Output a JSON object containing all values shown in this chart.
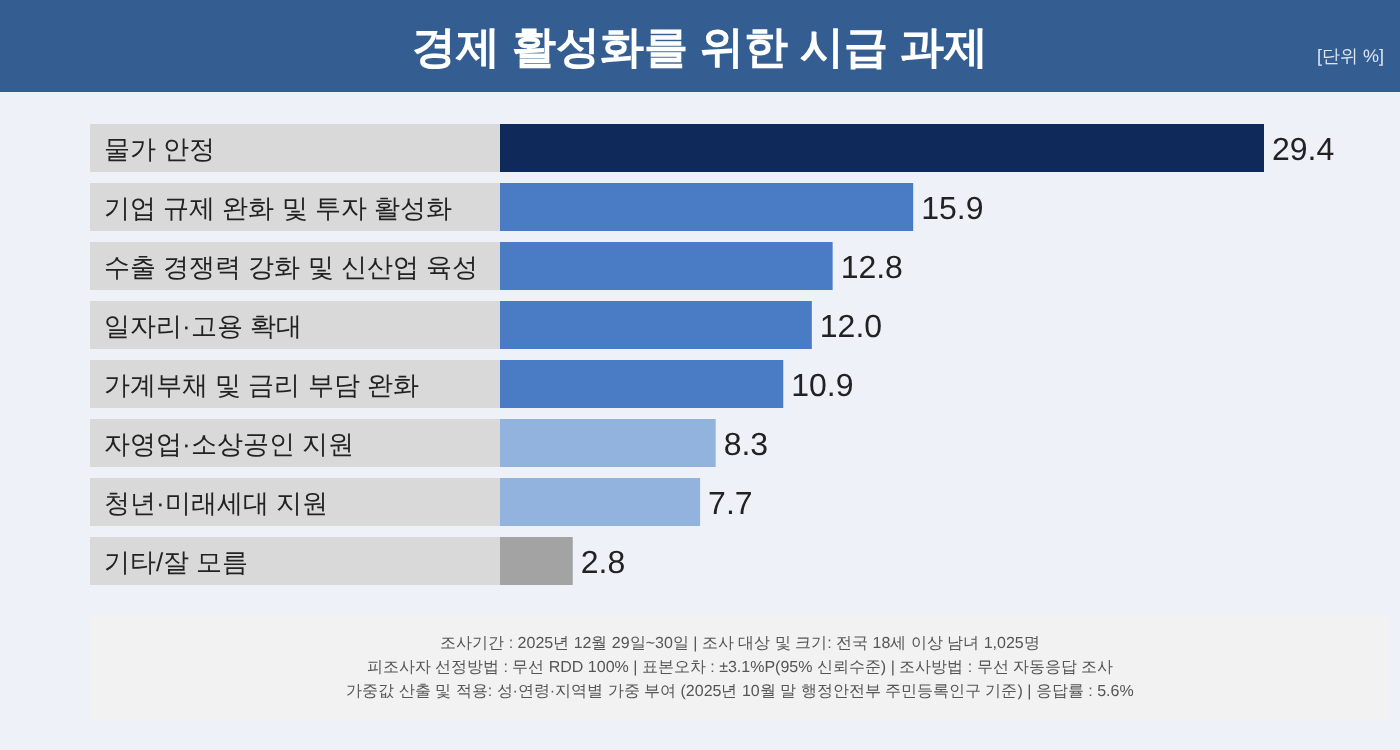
{
  "chart_data": {
    "type": "bar",
    "orientation": "horizontal",
    "title": "경제 활성화를 위한 시급 과제",
    "categories": [
      "물가 안정",
      "기업 규제 완화 및 투자 활성화",
      "수출 경쟁력 강화 및 신산업 육성",
      "일자리·고용 확대",
      "가계부채 및 금리 부담 완화",
      "자영업·소상공인 지원",
      "청년·미래세대 지원",
      "기타/잘 모름"
    ],
    "values": [
      29.4,
      15.9,
      12.8,
      12.0,
      10.9,
      8.3,
      7.7,
      2.8
    ],
    "colors": [
      "#0f2a5a",
      "#4a7cc6",
      "#4a7cc6",
      "#4a7cc6",
      "#4a7cc6",
      "#93b3df",
      "#93b3df",
      "#a3a3a3"
    ],
    "value_labels": [
      "29.4",
      "15.9",
      "12.8",
      "12.0",
      "10.9",
      "8.3",
      "7.7",
      "2.8"
    ],
    "annotations": [
      "[단위 %]",
      "조사기간 : 2025년 12월 29일~30일 | 조사 대상 및 크기: 전국 18세 이상 남녀 1,025명",
      "피조사자 선정방법 : 무선 RDD 100% | 표본오차 : ±3.1%P(95% 신뢰수준) | 조사방법 : 무선 자동응답 조사",
      "가중값 산출 및 적용: 성·연령·지역별 가중 부여 (2025년 10월 말 행정안전부 주민등록인구 기준) | 응답률 : 5.6%"
    ]
  }
}
